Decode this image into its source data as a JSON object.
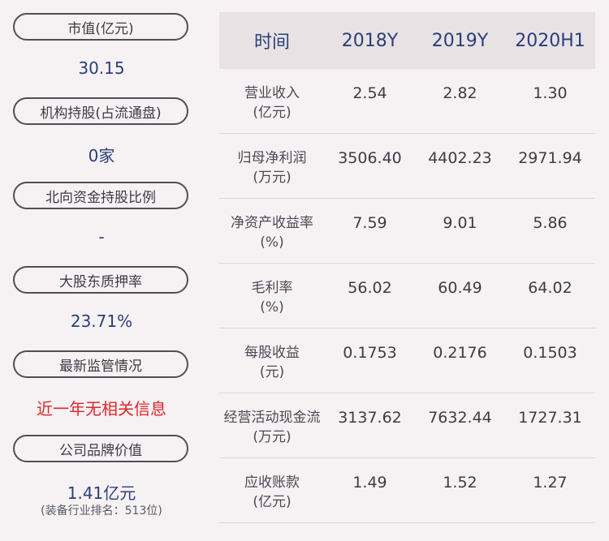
{
  "left": {
    "items": [
      {
        "label": "市值(亿元)",
        "value": "30.15"
      },
      {
        "label": "机构持股(占流通盘)",
        "value": "0家"
      },
      {
        "label": "北向资金持股比例",
        "value": "-"
      },
      {
        "label": "大股东质押率",
        "value": "23.71%"
      },
      {
        "label": "最新监管情况",
        "value": "近一年无相关信息"
      },
      {
        "label": "公司品牌价值",
        "value": "1.41亿元",
        "sub": "(装备行业排名：513位)"
      }
    ]
  },
  "table": {
    "headers": [
      "时间",
      "2018Y",
      "2019Y",
      "2020H1"
    ],
    "rows": [
      {
        "label1": "营业收入",
        "label2": "(亿元)",
        "values": [
          "2.54",
          "2.82",
          "1.30"
        ]
      },
      {
        "label1": "归母净利润",
        "label2": "(万元)",
        "values": [
          "3506.40",
          "4402.23",
          "2971.94"
        ]
      },
      {
        "label1": "净资产收益率",
        "label2": "(%)",
        "values": [
          "7.59",
          "9.01",
          "5.86"
        ]
      },
      {
        "label1": "毛利率",
        "label2": "(%)",
        "values": [
          "56.02",
          "60.49",
          "64.02"
        ]
      },
      {
        "label1": "每股收益",
        "label2": "(元)",
        "values": [
          "0.1753",
          "0.2176",
          "0.1503"
        ]
      },
      {
        "label1": "经营活动现金流",
        "label2": "(万元)",
        "values": [
          "3137.62",
          "7632.44",
          "1727.31"
        ]
      },
      {
        "label1": "应收账款",
        "label2": "(亿元)",
        "values": [
          "1.49",
          "1.52",
          "1.27"
        ]
      }
    ]
  },
  "colors": {
    "background": "#f6f1f3",
    "value_blue": "#2b3f7a",
    "alert_red": "#e1262a",
    "header_bg": "#e8e2e4"
  }
}
